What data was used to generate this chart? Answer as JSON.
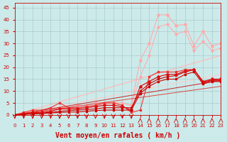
{
  "background_color": "#cceaea",
  "grid_color": "#aacccc",
  "xlabel": "Vent moyen/en rafales ( km/h )",
  "xlabel_color": "#cc0000",
  "xlabel_fontsize": 7,
  "xtick_color": "#cc0000",
  "ytick_color": "#cc0000",
  "xlim": [
    0,
    23
  ],
  "ylim": [
    0,
    47
  ],
  "yticks": [
    0,
    5,
    10,
    15,
    20,
    25,
    30,
    35,
    40,
    45
  ],
  "xticks": [
    0,
    1,
    2,
    3,
    4,
    5,
    6,
    7,
    8,
    9,
    10,
    11,
    12,
    13,
    14,
    15,
    16,
    17,
    18,
    19,
    20,
    21,
    22,
    23
  ],
  "series": [
    {
      "x": [
        0,
        23
      ],
      "y": [
        0,
        25
      ],
      "color": "#ffbbbb",
      "linewidth": 0.9,
      "marker": null,
      "markersize": 0,
      "zorder": 1
    },
    {
      "x": [
        0,
        1,
        2,
        3,
        4,
        5,
        6,
        7,
        8,
        9,
        10,
        11,
        12,
        13,
        14,
        15,
        16,
        17,
        18,
        19,
        20,
        21,
        22,
        23
      ],
      "y": [
        0,
        0.5,
        1,
        1.5,
        2,
        3,
        3,
        4,
        4,
        5,
        5,
        5,
        5,
        4,
        23,
        30,
        42,
        42,
        37.5,
        38,
        29,
        35,
        29,
        30
      ],
      "color": "#ffaaaa",
      "linewidth": 0.8,
      "marker": "D",
      "markersize": 2.0,
      "zorder": 2
    },
    {
      "x": [
        0,
        1,
        2,
        3,
        4,
        5,
        6,
        7,
        8,
        9,
        10,
        11,
        12,
        13,
        14,
        15,
        16,
        17,
        18,
        19,
        20,
        21,
        22,
        23
      ],
      "y": [
        0,
        0.5,
        1,
        1.5,
        2,
        2.5,
        3,
        3,
        3.5,
        4,
        4.5,
        5,
        5,
        4,
        16,
        25,
        37,
        38,
        34,
        35,
        27,
        31,
        27,
        28
      ],
      "color": "#ffaaaa",
      "linewidth": 0.7,
      "marker": "D",
      "markersize": 1.8,
      "zorder": 2
    },
    {
      "x": [
        0,
        23
      ],
      "y": [
        0,
        17
      ],
      "color": "#ffcccc",
      "linewidth": 0.8,
      "marker": null,
      "markersize": 0,
      "zorder": 1
    },
    {
      "x": [
        0,
        1,
        2,
        3,
        4,
        5,
        6,
        7,
        8,
        9,
        10,
        11,
        12,
        13,
        14,
        15,
        16,
        17,
        18,
        19,
        20,
        21,
        22,
        23
      ],
      "y": [
        0,
        0.2,
        0.4,
        0.5,
        0.8,
        1,
        1.2,
        1.2,
        1.5,
        1.8,
        2,
        2,
        2,
        2,
        9,
        12,
        14,
        15,
        15,
        17,
        18,
        13,
        14,
        14
      ],
      "color": "#cc0000",
      "linewidth": 0.8,
      "marker": "s",
      "markersize": 2.0,
      "zorder": 7
    },
    {
      "x": [
        0,
        1,
        2,
        3,
        4,
        5,
        6,
        7,
        8,
        9,
        10,
        11,
        12,
        13,
        14,
        15,
        16,
        17,
        18,
        19,
        20,
        21,
        22,
        23
      ],
      "y": [
        0,
        0.3,
        0.6,
        0.8,
        1,
        1.5,
        1.8,
        2,
        2.2,
        2.5,
        3,
        3,
        3,
        3,
        10,
        13,
        15,
        16,
        16.5,
        18,
        19,
        13.5,
        14.5,
        14.5
      ],
      "color": "#cc0000",
      "linewidth": 0.8,
      "marker": "s",
      "markersize": 2.0,
      "zorder": 6
    },
    {
      "x": [
        0,
        1,
        2,
        3,
        4,
        5,
        6,
        7,
        8,
        9,
        10,
        11,
        12,
        13,
        14,
        15,
        16,
        17,
        18,
        19,
        20,
        21,
        22,
        23
      ],
      "y": [
        0,
        0.5,
        1,
        1,
        1.5,
        2.5,
        2.5,
        2.5,
        3,
        3.5,
        4,
        4,
        3.5,
        2,
        12,
        14,
        16,
        17,
        17,
        18.5,
        19,
        14,
        15,
        15
      ],
      "color": "#dd1111",
      "linewidth": 0.9,
      "marker": "D",
      "markersize": 2.0,
      "zorder": 6
    },
    {
      "x": [
        0,
        1,
        2,
        3,
        4,
        5,
        6,
        7,
        8,
        9,
        10,
        11,
        12,
        13,
        14,
        15,
        16,
        17,
        18,
        19,
        20,
        21,
        22,
        23
      ],
      "y": [
        0,
        1,
        2,
        2,
        3,
        5,
        3,
        3,
        3.5,
        4,
        5,
        5,
        4,
        1,
        2,
        16,
        18,
        18,
        18,
        19,
        19,
        14,
        14.5,
        15
      ],
      "color": "#ee3333",
      "linewidth": 0.8,
      "marker": "s",
      "markersize": 2.0,
      "zorder": 5
    },
    {
      "x": [
        0,
        23
      ],
      "y": [
        0,
        14.5
      ],
      "color": "#cc2222",
      "linewidth": 0.7,
      "marker": null,
      "markersize": 0,
      "zorder": 3
    },
    {
      "x": [
        0,
        23
      ],
      "y": [
        0,
        12
      ],
      "color": "#dd4444",
      "linewidth": 0.7,
      "marker": null,
      "markersize": 0,
      "zorder": 3
    }
  ],
  "arrow_down_x": [
    0,
    1,
    2,
    3,
    4,
    5,
    6,
    7,
    8,
    9,
    10,
    11,
    12,
    13
  ],
  "arrow_up_x": [
    14,
    15,
    16,
    17,
    18,
    19,
    20,
    21,
    22,
    23
  ],
  "arrow_color": "#cc0000"
}
